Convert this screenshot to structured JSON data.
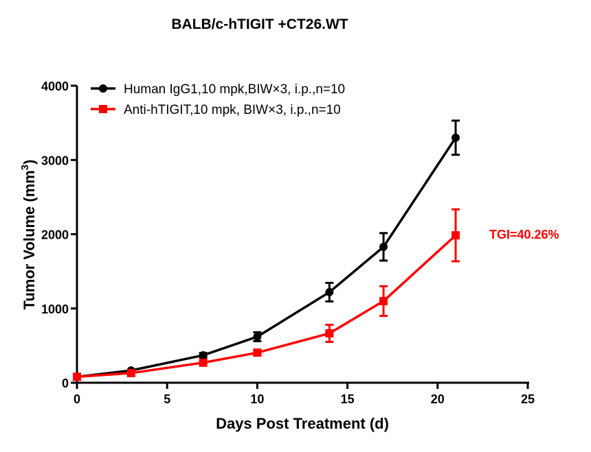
{
  "chart_data": {
    "type": "line",
    "title": "BALB/c-hTIGIT +CT26.WT",
    "xlabel": "Days Post Treatment (d)",
    "ylabel": "Tumor Volume (mm",
    "ylabel_sup": "3",
    "ylabel_close": ")",
    "xlim": [
      0,
      25
    ],
    "ylim": [
      0,
      4000
    ],
    "xticks": [
      0,
      5,
      10,
      15,
      20,
      25
    ],
    "yticks": [
      0,
      1000,
      2000,
      3000,
      4000
    ],
    "grid": false,
    "legend_placement": "top-left",
    "x": [
      0,
      3,
      7,
      10,
      14,
      17,
      21
    ],
    "series": [
      {
        "name": "Human IgG1,10 mpk,BIW×3, i.p.,n=10",
        "color": "#000000",
        "marker": "circle",
        "values": [
          80,
          165,
          370,
          620,
          1220,
          1830,
          3300
        ],
        "errors": [
          15,
          20,
          30,
          60,
          125,
          185,
          230
        ]
      },
      {
        "name": "Anti-hTIGIT,10 mpk, BIW×3, i.p.,n=10",
        "color": "#ff0000",
        "marker": "square",
        "values": [
          80,
          130,
          270,
          405,
          665,
          1100,
          1985
        ],
        "errors": [
          15,
          15,
          25,
          40,
          115,
          200,
          350
        ]
      }
    ],
    "annotations": [
      {
        "text": "TGI=40.26%",
        "color": "#ff0000"
      }
    ]
  }
}
